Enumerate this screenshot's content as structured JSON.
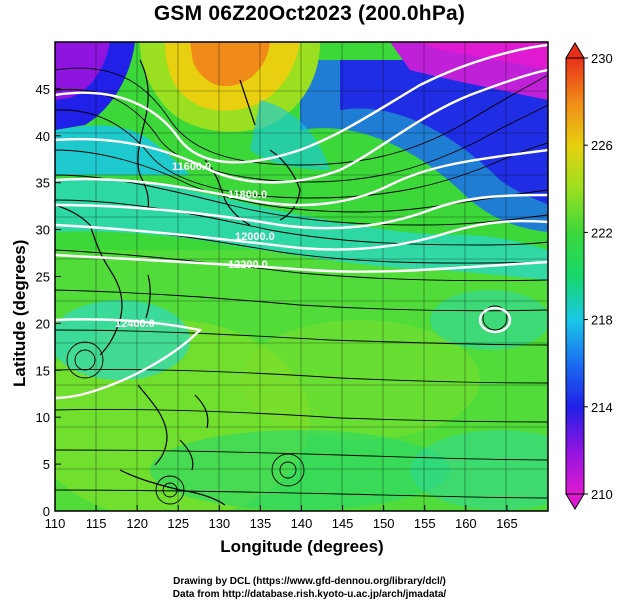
{
  "title": "GSM 06Z20Oct2023 (200.0hPa)",
  "axes": {
    "xlabel": "Longitude (degrees)",
    "ylabel": "Latitude  (degrees)",
    "x_ticks": [
      "110",
      "115",
      "120",
      "125",
      "130",
      "135",
      "140",
      "145",
      "150",
      "155",
      "160",
      "165"
    ],
    "y_ticks": [
      "0",
      "5",
      "10",
      "15",
      "20",
      "25",
      "30",
      "35",
      "40",
      "45"
    ]
  },
  "colorbar": {
    "labels": [
      "210",
      "214",
      "218",
      "222",
      "226",
      "230"
    ],
    "min": 210,
    "max": 230
  },
  "contour_labels": [
    "11600.0",
    "11800.0",
    "12000.0",
    "12200.0",
    "12400.0"
  ],
  "footer": {
    "line1": "Drawing by DCL (https://www.gfd-dennou.org/library/dcl/)",
    "line2": "Data from http://database.rish.kyoto-u.ac.jp/arch/jmadata/"
  },
  "map": {
    "lon_range": [
      110,
      170
    ],
    "lat_range": [
      0,
      50
    ],
    "field": "temperature (K) with streamlines and geopotential height contours"
  }
}
